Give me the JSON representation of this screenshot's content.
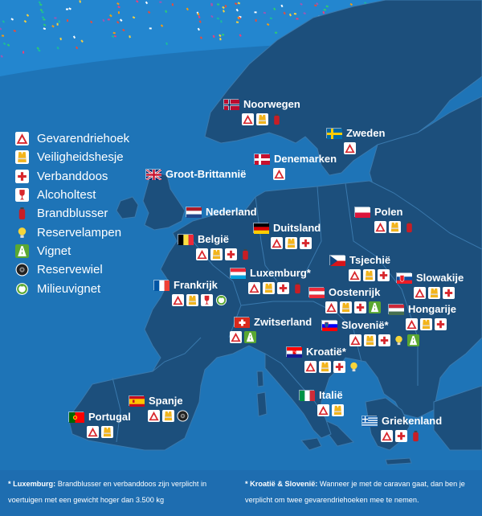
{
  "legend": {
    "items": [
      {
        "key": "triangle",
        "label": "Gevarendriehoek",
        "icon": "warning-triangle-icon"
      },
      {
        "key": "vest",
        "label": "Veiligheidshesje",
        "icon": "safety-vest-icon"
      },
      {
        "key": "firstaid",
        "label": "Verbanddoos",
        "icon": "first-aid-kit-icon"
      },
      {
        "key": "alcohol",
        "label": "Alcoholtest",
        "icon": "breathalyzer-icon"
      },
      {
        "key": "extinguisher",
        "label": "Brandblusser",
        "icon": "fire-extinguisher-icon"
      },
      {
        "key": "bulb",
        "label": "Reservelampen",
        "icon": "spare-bulb-icon"
      },
      {
        "key": "vignette",
        "label": "Vignet",
        "icon": "vignette-icon"
      },
      {
        "key": "tire",
        "label": "Reservewiel",
        "icon": "spare-wheel-icon"
      },
      {
        "key": "env",
        "label": "Milieuvignet",
        "icon": "environmental-sticker-icon"
      }
    ]
  },
  "colors": {
    "sea": "#1e74b7",
    "land": "#1c4f7c",
    "border": "#3a79ad",
    "triangle": "#d8262c",
    "vest": "#f2b41c",
    "firstaid": "#d8262c",
    "extinguisher": "#c81e25",
    "bulb": "#f5d53a",
    "vignette": "#5aa832",
    "env": "#5aa832",
    "tire": "#222222"
  },
  "countries": [
    {
      "id": "noorwegen",
      "name": "Noorwegen",
      "flag": "norway",
      "items": [
        "triangle",
        "vest",
        "extinguisher"
      ]
    },
    {
      "id": "zweden",
      "name": "Zweden",
      "flag": "sweden",
      "items": [
        "triangle"
      ]
    },
    {
      "id": "denemarken",
      "name": "Denemarken",
      "flag": "denmark",
      "items": [
        "triangle"
      ]
    },
    {
      "id": "grootbrittannie",
      "name": "Groot-Brittannië",
      "flag": "uk",
      "items": []
    },
    {
      "id": "nederland",
      "name": "Nederland",
      "flag": "netherlands",
      "items": []
    },
    {
      "id": "polen",
      "name": "Polen",
      "flag": "poland",
      "items": [
        "triangle",
        "vest",
        "extinguisher"
      ]
    },
    {
      "id": "duitsland",
      "name": "Duitsland",
      "flag": "germany",
      "items": [
        "triangle",
        "vest",
        "firstaid"
      ]
    },
    {
      "id": "belgie",
      "name": "België",
      "flag": "belgium",
      "items": [
        "triangle",
        "vest",
        "firstaid",
        "extinguisher"
      ]
    },
    {
      "id": "tsjechie",
      "name": "Tsjechië",
      "flag": "czech",
      "items": [
        "triangle",
        "vest",
        "firstaid"
      ]
    },
    {
      "id": "luxemburg",
      "name": "Luxemburg*",
      "flag": "luxembourg",
      "items": [
        "triangle",
        "vest",
        "firstaid",
        "extinguisher"
      ]
    },
    {
      "id": "slowakije",
      "name": "Slowakije",
      "flag": "slovakia",
      "items": [
        "triangle",
        "vest",
        "firstaid"
      ]
    },
    {
      "id": "frankrijk",
      "name": "Frankrijk",
      "flag": "france",
      "items": [
        "triangle",
        "vest",
        "alcohol",
        "env"
      ]
    },
    {
      "id": "oostenrijk",
      "name": "Oostenrijk",
      "flag": "austria",
      "items": [
        "triangle",
        "vest",
        "firstaid",
        "vignette"
      ]
    },
    {
      "id": "hongarije",
      "name": "Hongarije",
      "flag": "hungary",
      "items": [
        "triangle",
        "vest",
        "firstaid"
      ]
    },
    {
      "id": "zwitserland",
      "name": "Zwitserland",
      "flag": "switzerland",
      "items": [
        "triangle",
        "vignette"
      ]
    },
    {
      "id": "slovenie",
      "name": "Slovenië*",
      "flag": "slovenia",
      "items": [
        "triangle",
        "vest",
        "firstaid",
        "bulb",
        "vignette"
      ]
    },
    {
      "id": "kroatie",
      "name": "Kroatië*",
      "flag": "croatia",
      "items": [
        "triangle",
        "vest",
        "firstaid",
        "bulb"
      ]
    },
    {
      "id": "spanje",
      "name": "Spanje",
      "flag": "spain",
      "items": [
        "triangle",
        "vest",
        "tire"
      ]
    },
    {
      "id": "italie",
      "name": "Italië",
      "flag": "italy",
      "items": [
        "triangle",
        "vest"
      ]
    },
    {
      "id": "portugal",
      "name": "Portugal",
      "flag": "portugal",
      "items": [
        "triangle",
        "vest"
      ]
    },
    {
      "id": "griekenland",
      "name": "Griekenland",
      "flag": "greece",
      "items": [
        "triangle",
        "firstaid",
        "extinguisher"
      ]
    }
  ],
  "footnotes": {
    "left_title": "* Luxemburg:",
    "left_text": " Brandblusser en verbanddoos zijn verplicht in voertuigen met een gewicht hoger dan 3.500 kg",
    "right_title": "* Kroatië & Slovenië:",
    "right_text": " Wanneer je met de caravan gaat, dan ben je verplicht om twee gevarendriehoeken mee te nemen."
  }
}
